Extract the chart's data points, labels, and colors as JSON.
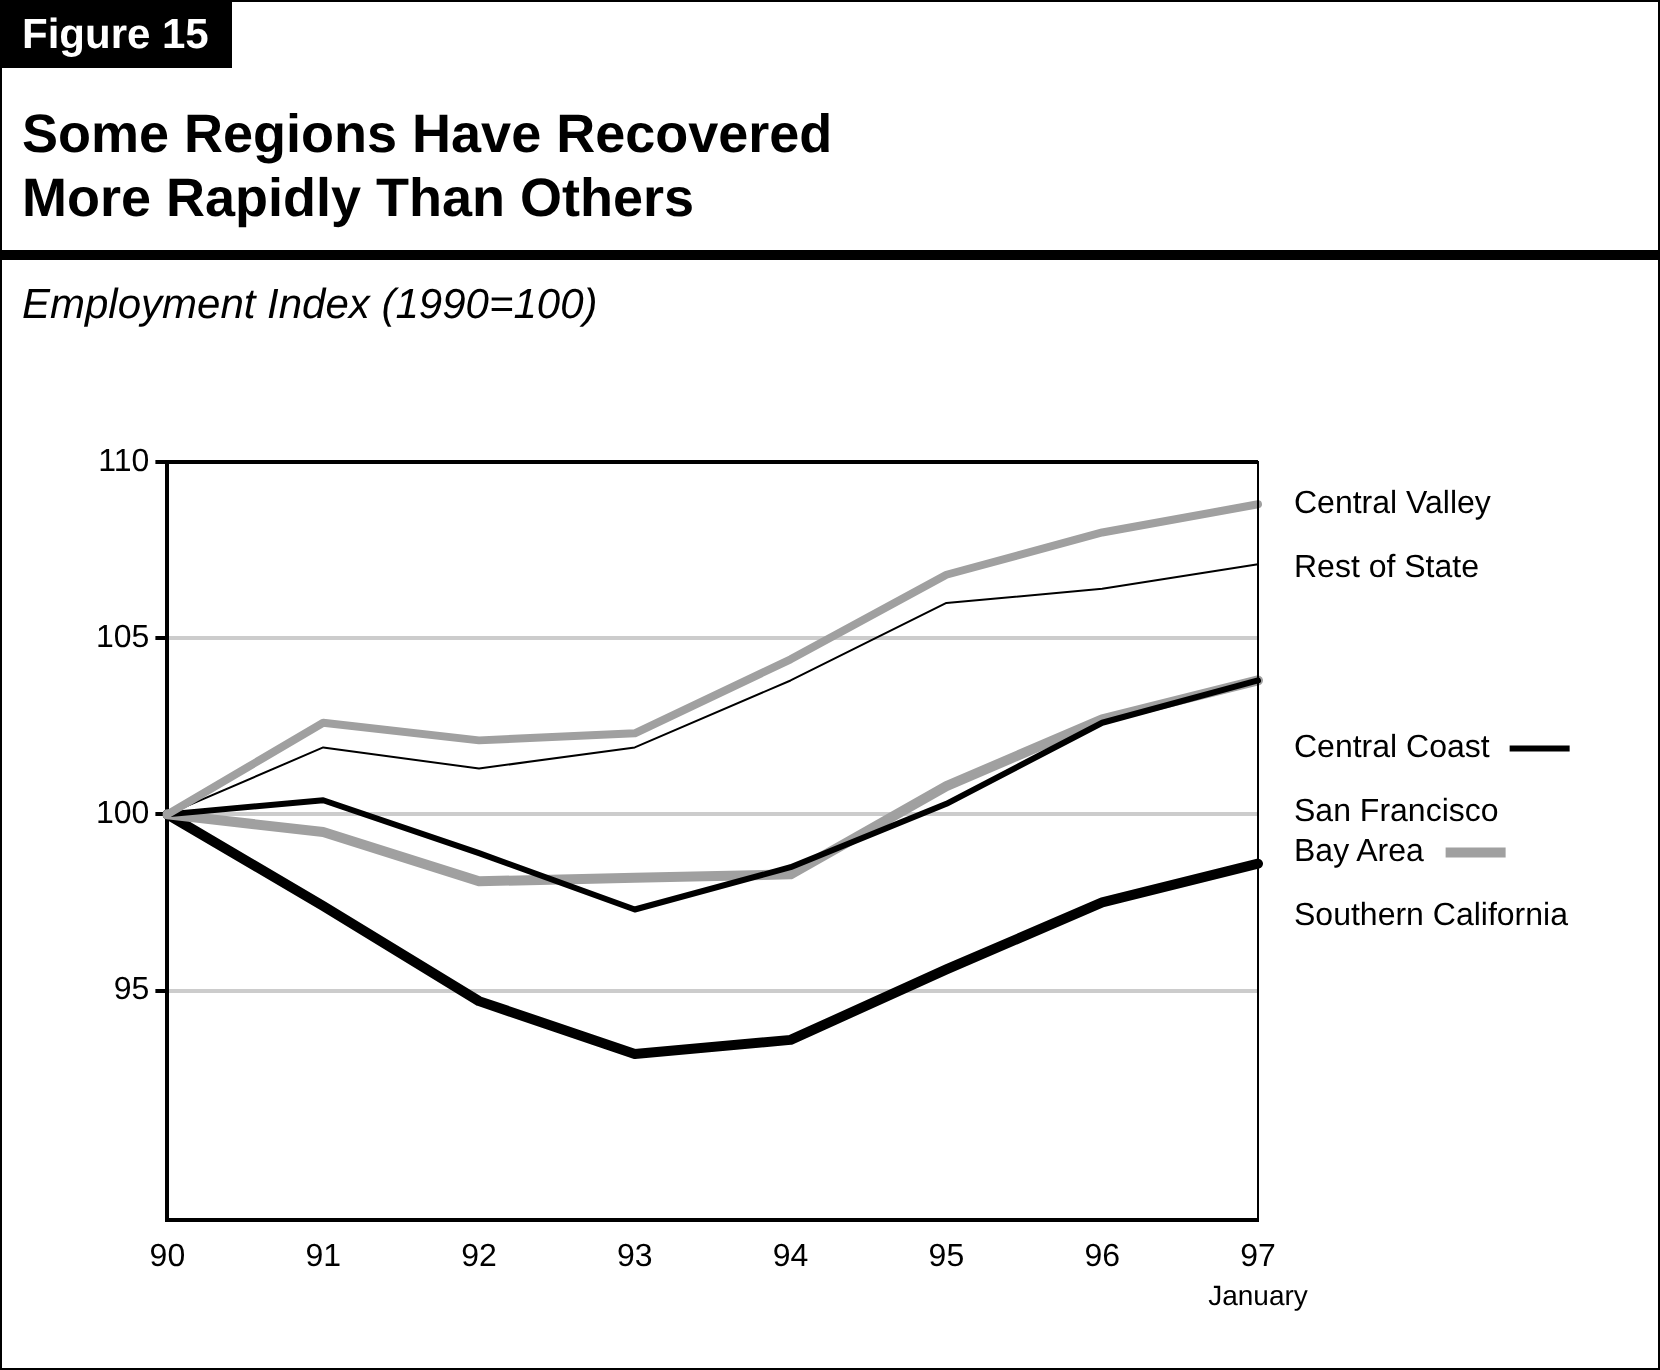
{
  "chart_data": {
    "type": "line",
    "title": "Some Regions Have Recovered More Rapidly Than Others",
    "ylabel": "Employment Index (1990=100)",
    "annotations": [
      "Figure 15",
      "January"
    ],
    "categories": [
      "90",
      "91",
      "92",
      "93",
      "94",
      "95",
      "96",
      "97"
    ],
    "series": [
      {
        "name": "Central Valley",
        "color": "#a0a0a0",
        "values": [
          100,
          102.6,
          102.1,
          102.3,
          104.4,
          106.8,
          108.0,
          108.8
        ]
      },
      {
        "name": "Rest of State",
        "color": "#000000",
        "values": [
          100,
          101.9,
          101.3,
          101.9,
          103.8,
          106.0,
          106.4,
          107.1
        ]
      },
      {
        "name": "Central Coast",
        "color": "#000000",
        "values": [
          100,
          100.4,
          98.9,
          97.3,
          98.5,
          100.3,
          102.6,
          103.8
        ]
      },
      {
        "name": "San Francisco\nBay Area",
        "color": "#a0a0a0",
        "values": [
          100,
          99.5,
          98.1,
          98.2,
          98.3,
          100.8,
          102.7,
          103.8
        ]
      },
      {
        "name": "Southern California",
        "color": "#000000",
        "values": [
          100,
          97.4,
          94.7,
          93.2,
          93.6,
          95.6,
          97.5,
          98.6
        ]
      }
    ],
    "ylim": [
      88.5,
      110
    ],
    "yticks": [
      95,
      100,
      105,
      110
    ],
    "grid": "y",
    "legend": "right",
    "marker": "none",
    "line_style": "solid"
  }
}
